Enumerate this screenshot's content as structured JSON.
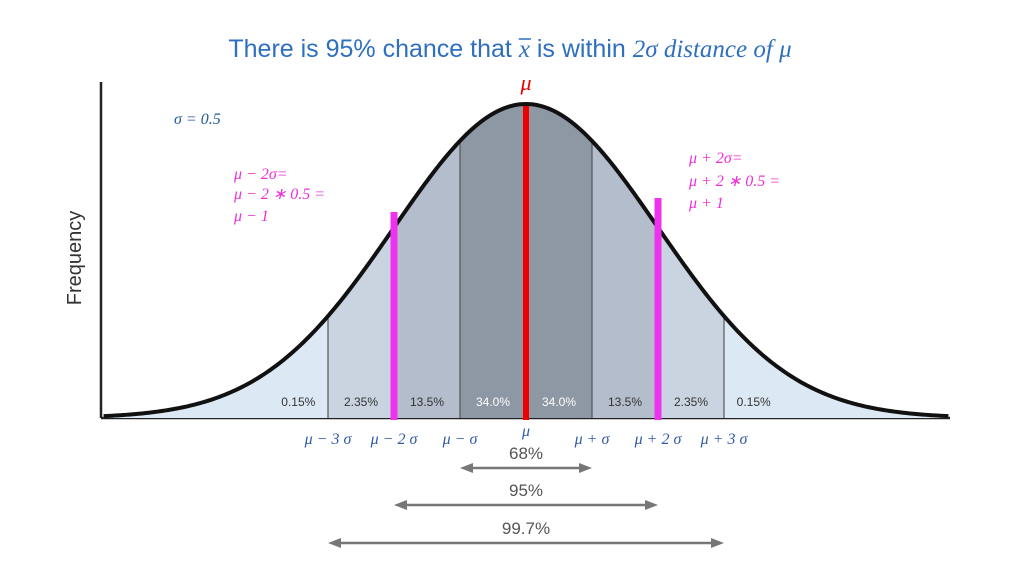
{
  "title": {
    "prefix": "There is 95% chance that ",
    "xbar": "x",
    "middle": " is within ",
    "math_tail": "2σ distance of μ"
  },
  "mu_label": "μ",
  "sigma_note": "σ = 0.5",
  "y_axis_label": "Frequency",
  "left_annotation": [
    "μ − 2σ=",
    "μ − 2 ∗ 0.5 =",
    "μ − 1"
  ],
  "right_annotation": [
    "μ + 2σ=",
    "μ + 2 ∗ 0.5 =",
    "μ + 1"
  ],
  "bands": [
    {
      "label": "0.15%"
    },
    {
      "label": "2.35%"
    },
    {
      "label": "13.5%"
    },
    {
      "label": "34.0%"
    },
    {
      "label": "34.0%"
    },
    {
      "label": "13.5%"
    },
    {
      "label": "2.35%"
    },
    {
      "label": "0.15%"
    }
  ],
  "ticks": [
    "μ − 3 σ",
    "μ − 2 σ",
    "μ − σ",
    "μ",
    "μ + σ",
    "μ + 2 σ",
    "μ + 3 σ"
  ],
  "ranges": [
    {
      "label": "68%",
      "sigmas": 1
    },
    {
      "label": "95%",
      "sigmas": 2
    },
    {
      "label": "99.7%",
      "sigmas": 3
    }
  ],
  "colors": {
    "title": "#2e6fbf",
    "mean_line": "#ee0000",
    "two_sigma_lines": "#ee33ee",
    "curve": "#111111",
    "arrows": "#777777"
  }
}
